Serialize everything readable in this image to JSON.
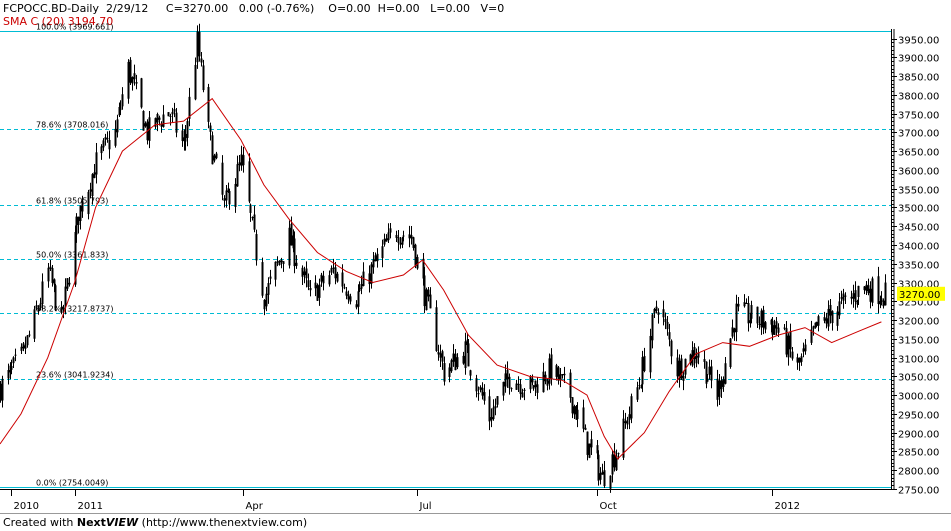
{
  "header": {
    "symbol": "FCPOCC.BD",
    "period": "-Daily",
    "date": "2/29/12",
    "close": "C=3270.00",
    "change": "0.00 (-0.76%)",
    "open": "O=0.00",
    "high": "H=0.00",
    "low": "L=0.00",
    "volume": "V=0"
  },
  "sma_label": "SMA C (20) 3194.70",
  "last_price_label": "3270.00",
  "footer": {
    "prefix": "Created with ",
    "brand_next": "Next",
    "brand_view": "VIEW",
    "url": " (http://www.thenextview.com)"
  },
  "colors": {
    "candle": "#000000",
    "sma": "#cc0000",
    "fib": "#00bcd4",
    "axis": "#000000",
    "last_price_bg": "#ffff00"
  },
  "chart_data": {
    "type": "candlestick",
    "ylim": [
      2750,
      3970
    ],
    "y_ticks": [
      2750,
      2800,
      2850,
      2900,
      2950,
      3000,
      3050,
      3100,
      3150,
      3200,
      3250,
      3300,
      3350,
      3400,
      3450,
      3500,
      3550,
      3600,
      3650,
      3700,
      3750,
      3800,
      3850,
      3900,
      3950
    ],
    "y_tick_labels": [
      "2750.00",
      "2800.00",
      "2850.00",
      "2900.00",
      "2950.00",
      "3000.00",
      "3050.00",
      "3100.00",
      "3150.00",
      "3200.00",
      "3250.00",
      "3300.00",
      "3350.00",
      "3400.00",
      "3450.00",
      "3500.00",
      "3550.00",
      "3600.00",
      "3650.00",
      "3700.00",
      "3750.00",
      "3800.00",
      "3850.00",
      "3900.00",
      "3950.00"
    ],
    "x_labels": [
      {
        "label": "2010",
        "date": "2010-12-01"
      },
      {
        "label": "2011",
        "date": "2011-01-03"
      },
      {
        "label": "Apr",
        "date": "2011-04-01"
      },
      {
        "label": "Jul",
        "date": "2011-07-01"
      },
      {
        "label": "Oct",
        "date": "2011-10-03"
      },
      {
        "label": "2012",
        "date": "2012-01-03"
      }
    ],
    "x_range": [
      "2010-11-25",
      "2012-03-05"
    ],
    "fib_levels": [
      {
        "label": "100.0% (3969.661)",
        "value": 3969.661
      },
      {
        "label": "78.6% (3708.016)",
        "value": 3708.016
      },
      {
        "label": "61.8% (3505.793)",
        "value": 3505.793
      },
      {
        "label": "50.0% (3361.833)",
        "value": 3361.833
      },
      {
        "label": "38.2% (3217.8737)",
        "value": 3217.8737
      },
      {
        "label": "23.6% (3041.9234)",
        "value": 3041.9234
      },
      {
        "label": "0.0% (2754.0049)",
        "value": 2754.0049
      }
    ],
    "price_path": [
      [
        "2010-11-25",
        3020
      ],
      [
        "2010-12-06",
        3100
      ],
      [
        "2010-12-13",
        3200
      ],
      [
        "2010-12-20",
        3330
      ],
      [
        "2010-12-27",
        3200
      ],
      [
        "2011-01-05",
        3480
      ],
      [
        "2011-01-14",
        3620
      ],
      [
        "2011-01-24",
        3700
      ],
      [
        "2011-01-31",
        3870
      ],
      [
        "2011-02-10",
        3700
      ],
      [
        "2011-02-21",
        3760
      ],
      [
        "2011-03-01",
        3660
      ],
      [
        "2011-03-08",
        3940
      ],
      [
        "2011-03-14",
        3700
      ],
      [
        "2011-03-22",
        3500
      ],
      [
        "2011-03-31",
        3620
      ],
      [
        "2011-04-12",
        3260
      ],
      [
        "2011-04-25",
        3420
      ],
      [
        "2011-05-06",
        3260
      ],
      [
        "2011-05-18",
        3330
      ],
      [
        "2011-05-30",
        3260
      ],
      [
        "2011-06-10",
        3360
      ],
      [
        "2011-06-20",
        3440
      ],
      [
        "2011-06-28",
        3420
      ],
      [
        "2011-07-06",
        3250
      ],
      [
        "2011-07-15",
        3060
      ],
      [
        "2011-07-26",
        3120
      ],
      [
        "2011-08-08",
        2940
      ],
      [
        "2011-08-18",
        3050
      ],
      [
        "2011-08-30",
        3020
      ],
      [
        "2011-09-09",
        3070
      ],
      [
        "2011-09-19",
        3000
      ],
      [
        "2011-09-28",
        2870
      ],
      [
        "2011-10-06",
        2780
      ],
      [
        "2011-10-14",
        2860
      ],
      [
        "2011-10-26",
        3050
      ],
      [
        "2011-11-04",
        3250
      ],
      [
        "2011-11-14",
        3070
      ],
      [
        "2011-11-24",
        3120
      ],
      [
        "2011-12-05",
        3000
      ],
      [
        "2011-12-15",
        3220
      ],
      [
        "2011-12-27",
        3200
      ],
      [
        "2012-01-06",
        3180
      ],
      [
        "2012-01-16",
        3070
      ],
      [
        "2012-01-26",
        3180
      ],
      [
        "2012-02-08",
        3240
      ],
      [
        "2012-02-20",
        3290
      ],
      [
        "2012-02-29",
        3270
      ]
    ],
    "sma20_path": [
      [
        "2010-11-25",
        2870
      ],
      [
        "2010-12-06",
        2950
      ],
      [
        "2010-12-20",
        3100
      ],
      [
        "2011-01-03",
        3300
      ],
      [
        "2011-01-14",
        3500
      ],
      [
        "2011-01-28",
        3650
      ],
      [
        "2011-02-14",
        3720
      ],
      [
        "2011-03-01",
        3730
      ],
      [
        "2011-03-16",
        3790
      ],
      [
        "2011-03-31",
        3680
      ],
      [
        "2011-04-12",
        3560
      ],
      [
        "2011-04-25",
        3470
      ],
      [
        "2011-05-10",
        3380
      ],
      [
        "2011-05-25",
        3330
      ],
      [
        "2011-06-08",
        3300
      ],
      [
        "2011-06-24",
        3320
      ],
      [
        "2011-07-04",
        3360
      ],
      [
        "2011-07-15",
        3280
      ],
      [
        "2011-07-28",
        3160
      ],
      [
        "2011-08-12",
        3080
      ],
      [
        "2011-08-29",
        3050
      ],
      [
        "2011-09-15",
        3040
      ],
      [
        "2011-09-28",
        3000
      ],
      [
        "2011-10-07",
        2890
      ],
      [
        "2011-10-14",
        2830
      ],
      [
        "2011-10-28",
        2900
      ],
      [
        "2011-11-10",
        3010
      ],
      [
        "2011-11-24",
        3110
      ],
      [
        "2011-12-08",
        3140
      ],
      [
        "2011-12-22",
        3130
      ],
      [
        "2012-01-06",
        3160
      ],
      [
        "2012-01-20",
        3180
      ],
      [
        "2012-02-03",
        3140
      ],
      [
        "2012-02-17",
        3170
      ],
      [
        "2012-02-29",
        3195
      ]
    ]
  }
}
